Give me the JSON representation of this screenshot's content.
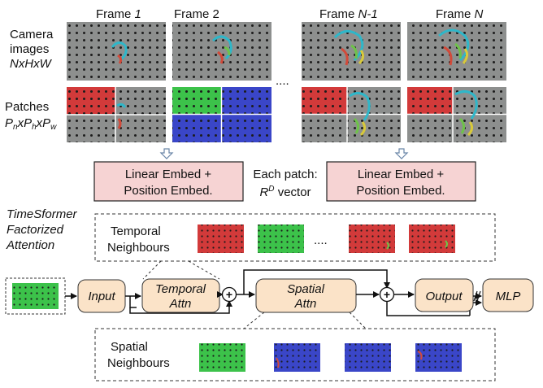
{
  "frames": {
    "header_prefix": "Frame",
    "labels": [
      {
        "prefix": "Frame",
        "n": "1"
      },
      {
        "prefix": "Frame",
        "n": "2"
      },
      {
        "prefix": "Frame",
        "n": "N-1"
      },
      {
        "prefix": "Frame",
        "n": "N"
      }
    ],
    "ellipsis": "...."
  },
  "left_labels": {
    "camera_line1": "Camera",
    "camera_line2": "images",
    "camera_dims": "NxHxW",
    "patches_line1": "Patches",
    "patches_dims": "PnxPhxPw"
  },
  "embed": {
    "box_line1": "Linear Embed +",
    "box_line2": "Position Embed.",
    "each_patch": "Each patch:",
    "vector_sym": "R",
    "vector_sup": "D",
    "vector_word": "vector"
  },
  "timesformer": {
    "line1": "TimeSformer",
    "line2": "Factorized",
    "line3": "Attention"
  },
  "temporal_neighbours": {
    "line1": "Temporal",
    "line2": "Neighbours",
    "ellipsis": "...."
  },
  "spatial_neighbours": {
    "line1": "Spatial",
    "line2": "Neighbours"
  },
  "pipeline": {
    "input": "Input",
    "temporal_line1": "Temporal",
    "temporal_line2": "Attn",
    "spatial_line1": "Spatial",
    "spatial_line2": "Attn",
    "output": "Output",
    "mlp": "MLP",
    "plus": "+"
  },
  "colors": {
    "embed_fill": "#f6d3d3",
    "node_fill": "#fbe3c8",
    "patch_red": "#d23a3a",
    "patch_green": "#3cc24a",
    "patch_blue": "#3a46c8",
    "image_gray": "#8d8f8e"
  }
}
